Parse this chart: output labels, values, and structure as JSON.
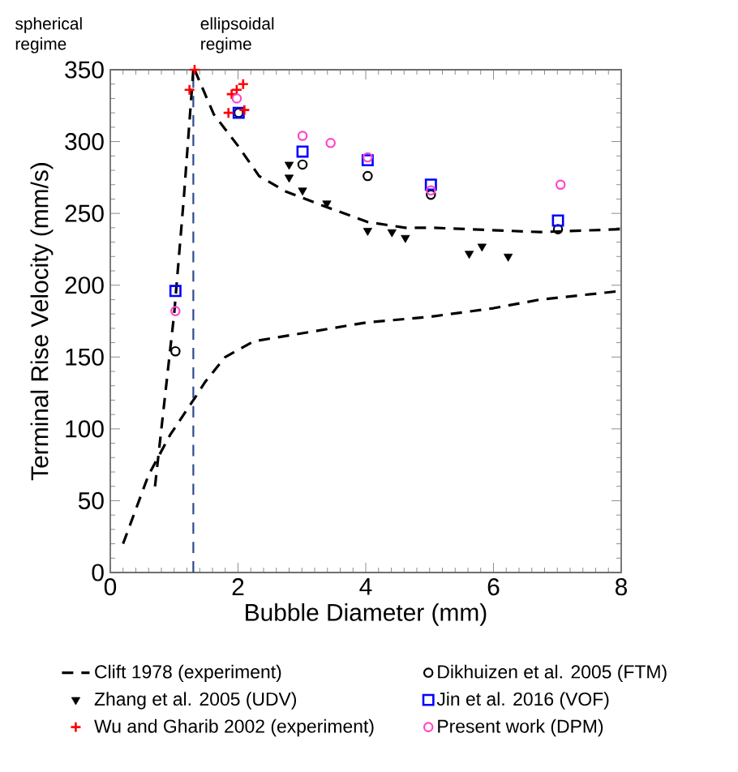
{
  "chart_data": {
    "type": "scatter",
    "xlabel": "Bubble Diameter (mm)",
    "ylabel": "Terminal Rise Velocity (mm/s)",
    "xlim": [
      0,
      8
    ],
    "ylim": [
      0,
      350
    ],
    "xticks": [
      0,
      2,
      4,
      6,
      8
    ],
    "yticks": [
      0,
      50,
      100,
      150,
      200,
      250,
      300,
      350
    ],
    "legend": "bottom",
    "annotations": [
      "spherical regime",
      "ellipsoidal regime"
    ],
    "ref_lines": [
      {
        "axis": "x",
        "value": 1.3,
        "color": "#2e4a8c",
        "line_style": "dashed"
      }
    ],
    "series": [
      {
        "name": "Clift 1978 (experiment)",
        "type": "line",
        "line_style": "dashed",
        "marker": "none",
        "color": "#000000",
        "x": [
          0.2,
          0.6,
          0.94,
          1.36,
          1.49,
          1.8,
          2.25,
          3.2,
          4,
          5,
          6,
          6.73,
          8
        ],
        "values": [
          20,
          68,
          96,
          124,
          133,
          150,
          161,
          168,
          174,
          178,
          184,
          190,
          196
        ]
      },
      {
        "type": "line",
        "line_style": "dashed",
        "marker": "none",
        "color": "#000000",
        "x": [
          0.7,
          0.85,
          1.0,
          1.15,
          1.3
        ],
        "values": [
          60,
          120,
          180,
          260,
          350
        ]
      },
      {
        "type": "line",
        "line_style": "dashed",
        "marker": "none",
        "color": "#000000",
        "x": [
          1.32,
          1.62,
          2.0,
          2.33,
          2.76,
          3.35,
          4.03,
          4.62,
          5.04,
          6.73,
          8
        ],
        "values": [
          350,
          319,
          297,
          276,
          265,
          255,
          244,
          240,
          240,
          237,
          239
        ]
      },
      {
        "name": "Dikhuizen et al. 2005 (FTM)",
        "marker": "circle",
        "color": "#000000",
        "x": [
          1.02,
          2.01,
          3.01,
          4.03,
          5.02,
          7.01
        ],
        "values": [
          154,
          320,
          284,
          276,
          263,
          239
        ]
      },
      {
        "name": "Zhang et al. 2005 (UDV)",
        "marker": "triangle",
        "color": "#000000",
        "x": [
          2.8,
          2.8,
          3.01,
          3.39,
          4.03,
          4.41,
          4.62,
          5.62,
          5.82,
          6.23
        ],
        "values": [
          284,
          275,
          266,
          257,
          238,
          237,
          233,
          222,
          227,
          220
        ]
      },
      {
        "name": "Jin et al. 2016 (VOF)",
        "marker": "square",
        "color": "#0000ff",
        "x": [
          1.02,
          2.01,
          3.01,
          4.03,
          5.02,
          7.01
        ],
        "values": [
          196,
          320,
          293,
          287,
          270,
          245
        ]
      },
      {
        "name": "Wu and Gharib 2002 (experiment)",
        "marker": "cross",
        "color": "#ff0000",
        "x": [
          1.32,
          1.24,
          1.9,
          2.08,
          1.85,
          2.1,
          1.98
        ],
        "values": [
          350,
          336,
          333,
          340,
          320,
          322,
          336
        ]
      },
      {
        "name": "Present work (DPM)",
        "marker": "circle",
        "color": "#ff44cc",
        "x": [
          1.02,
          1.98,
          3.01,
          3.45,
          4.03,
          5.02,
          7.05
        ],
        "values": [
          182,
          330,
          304,
          299,
          289,
          266,
          270
        ]
      }
    ]
  }
}
